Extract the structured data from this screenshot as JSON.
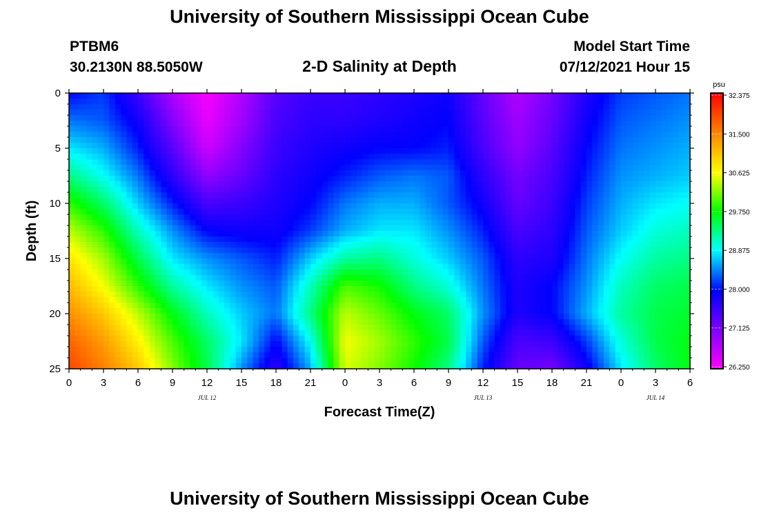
{
  "header": {
    "title": "University of Southern Mississippi Ocean Cube",
    "station_id": "PTBM6",
    "station_location": "30.2130N  88.5050W",
    "chart_title": "2-D Salinity at Depth",
    "model_label": "Model Start Time",
    "model_time": "07/12/2021 Hour 15"
  },
  "footer": {
    "title": "University of Southern Mississippi Ocean Cube"
  },
  "chart_data": {
    "type": "heatmap",
    "title": "2-D Salinity at Depth",
    "xlabel": "Forecast Time(Z)",
    "ylabel": "Depth (ft)",
    "x_range_hours": [
      0,
      54
    ],
    "x_tick_values": [
      0,
      3,
      6,
      9,
      12,
      15,
      18,
      21,
      24,
      27,
      30,
      33,
      36,
      39,
      42,
      45,
      48,
      51,
      54
    ],
    "x_tick_labels": [
      "0",
      "3",
      "6",
      "9",
      "12",
      "15",
      "18",
      "21",
      "0",
      "3",
      "6",
      "9",
      "12",
      "15",
      "18",
      "21",
      "0",
      "3",
      "6"
    ],
    "date_labels": [
      {
        "hour": 12,
        "text": "JUL 12"
      },
      {
        "hour": 36,
        "text": "JUL 13"
      },
      {
        "hour": 51,
        "text": "JUL 14"
      }
    ],
    "ylim": [
      0,
      25
    ],
    "y_inverted": true,
    "y_tick_values": [
      0,
      5,
      10,
      15,
      20,
      25
    ],
    "y_tick_labels": [
      "0",
      "5",
      "10",
      "15",
      "20",
      "25"
    ],
    "colorbar": {
      "unit": "psu",
      "min": 26.25,
      "max": 32.375,
      "tick_labels": [
        "32.375",
        "31.500",
        "30.625",
        "29.750",
        "28.875",
        "28.000",
        "27.125",
        "26.250"
      ]
    },
    "columns_x_hours": [
      0,
      3,
      6,
      9,
      12,
      15,
      18,
      21,
      24,
      27,
      30,
      33,
      36,
      39,
      42,
      45,
      48,
      51,
      54
    ],
    "rows_depth_ft": [
      0,
      2.5,
      5,
      7.5,
      10,
      12.5,
      15,
      17.5,
      20,
      22.5,
      25
    ],
    "salinity_psu": [
      [
        28.0,
        28.2,
        27.6,
        26.8,
        26.3,
        26.8,
        27.4,
        27.6,
        27.6,
        27.7,
        27.8,
        27.9,
        27.3,
        26.8,
        27.2,
        27.8,
        28.2,
        28.3,
        28.4
      ],
      [
        28.4,
        28.3,
        27.9,
        27.1,
        26.4,
        26.9,
        27.5,
        27.7,
        27.7,
        27.8,
        27.9,
        28.0,
        27.4,
        26.9,
        27.3,
        27.9,
        28.3,
        28.4,
        28.5
      ],
      [
        28.8,
        28.6,
        28.1,
        27.4,
        26.6,
        27.1,
        27.6,
        27.8,
        27.9,
        28.0,
        28.0,
        28.1,
        27.5,
        27.0,
        27.4,
        28.0,
        28.4,
        28.5,
        28.6
      ],
      [
        29.3,
        28.9,
        28.4,
        27.7,
        27.0,
        27.3,
        27.7,
        27.9,
        28.1,
        28.3,
        28.4,
        28.3,
        27.7,
        27.2,
        27.5,
        28.1,
        28.5,
        28.6,
        28.7
      ],
      [
        29.9,
        29.4,
        28.7,
        28.1,
        27.5,
        27.6,
        27.8,
        28.0,
        28.4,
        28.6,
        28.6,
        28.3,
        27.9,
        27.3,
        27.6,
        28.2,
        28.6,
        28.8,
        28.9
      ],
      [
        30.4,
        29.9,
        29.1,
        28.5,
        28.0,
        27.9,
        27.9,
        28.2,
        28.6,
        28.8,
        28.8,
        28.5,
        28.1,
        27.5,
        27.7,
        28.3,
        28.7,
        29.0,
        29.1
      ],
      [
        30.8,
        30.3,
        29.5,
        28.8,
        28.5,
        28.3,
        28.1,
        28.7,
        29.2,
        29.3,
        29.0,
        28.7,
        28.3,
        27.7,
        27.8,
        28.4,
        28.9,
        29.2,
        29.3
      ],
      [
        31.1,
        30.6,
        29.9,
        29.2,
        28.8,
        28.5,
        28.3,
        29.1,
        30.0,
        29.8,
        29.3,
        29.0,
        28.4,
        27.8,
        28.0,
        28.5,
        29.1,
        29.4,
        29.5
      ],
      [
        31.4,
        31.0,
        30.4,
        29.7,
        29.1,
        28.7,
        28.4,
        29.3,
        30.4,
        30.1,
        29.7,
        29.4,
        28.5,
        27.8,
        28.0,
        28.6,
        29.2,
        29.5,
        29.6
      ],
      [
        31.7,
        31.3,
        30.7,
        30.0,
        29.4,
        28.8,
        28.0,
        28.9,
        30.6,
        30.3,
        29.9,
        29.5,
        28.3,
        27.5,
        27.6,
        28.2,
        29.0,
        29.5,
        29.7
      ],
      [
        31.9,
        31.5,
        31.0,
        30.2,
        29.5,
        28.5,
        27.7,
        28.6,
        30.5,
        30.2,
        29.8,
        29.3,
        28.1,
        27.3,
        27.2,
        27.9,
        28.8,
        29.4,
        29.7
      ]
    ]
  }
}
